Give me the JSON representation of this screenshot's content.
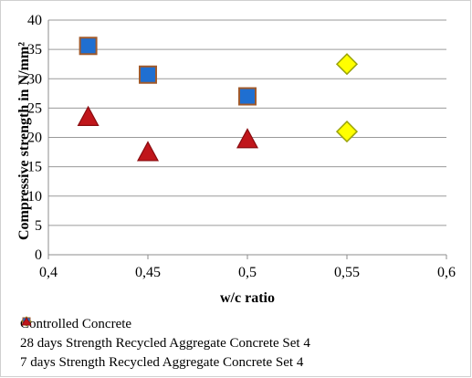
{
  "chart_data": {
    "type": "scatter",
    "xlabel": "w/c ratio",
    "ylabel": "Compressive strength in N/mm²",
    "xlim": [
      0.4,
      0.6
    ],
    "ylim": [
      0,
      40
    ],
    "x_ticks": [
      "0,4",
      "0,45",
      "0,5",
      "0,55",
      "0,6"
    ],
    "y_ticks": [
      "0",
      "5",
      "10",
      "15",
      "20",
      "25",
      "30",
      "35",
      "40"
    ],
    "grid": "horizontal",
    "legend_position": "bottom",
    "series": [
      {
        "name": "Controlled Concrete",
        "marker": "diamond",
        "color": "#ffff00",
        "edge_color": "#9aa30a",
        "points": [
          {
            "x": 0.55,
            "y": 32.5
          },
          {
            "x": 0.55,
            "y": 21
          }
        ]
      },
      {
        "name": "28 days Strength Recycled Aggregate Concrete Set 4",
        "marker": "square",
        "color": "#1f6fd1",
        "edge_color": "#a05a2c",
        "points": [
          {
            "x": 0.42,
            "y": 35.6
          },
          {
            "x": 0.45,
            "y": 30.7
          },
          {
            "x": 0.5,
            "y": 27
          }
        ]
      },
      {
        "name": "7 days Strength Recycled Aggregate Concrete Set 4",
        "marker": "triangle",
        "color": "#c0161b",
        "edge_color": "#8a0c10",
        "points": [
          {
            "x": 0.42,
            "y": 23.5
          },
          {
            "x": 0.45,
            "y": 17.5
          },
          {
            "x": 0.5,
            "y": 19.7
          }
        ]
      }
    ]
  }
}
